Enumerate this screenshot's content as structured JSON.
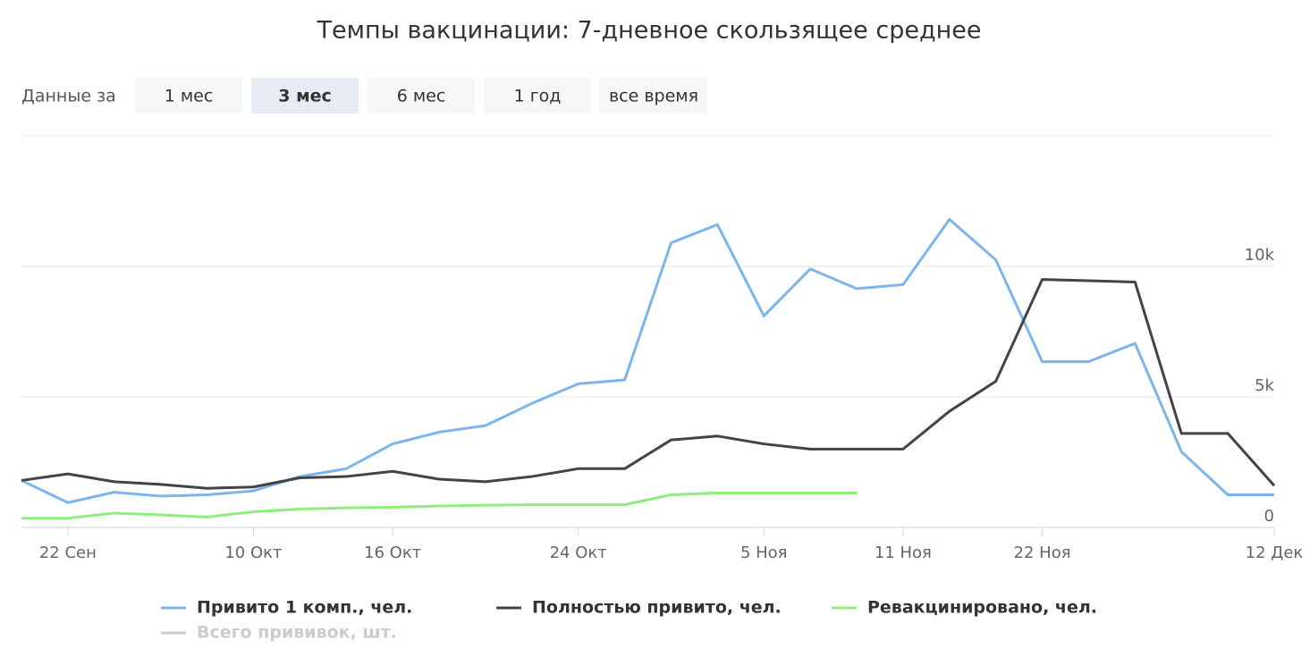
{
  "controls": {
    "label": "Данные за",
    "buttons": [
      "1 мес",
      "3 мес",
      "6 мес",
      "1 год",
      "все время"
    ],
    "selected": 1
  },
  "chart_data": {
    "type": "line",
    "title": "Темпы вакцинации: 7-дневное скользящее среднее",
    "categories": [
      null,
      "22 Сен",
      null,
      null,
      null,
      "10 Окт",
      null,
      null,
      "16 Окт",
      null,
      null,
      null,
      "24 Окт",
      null,
      null,
      null,
      "5 Ноя",
      null,
      null,
      "11 Ноя",
      null,
      null,
      "22 Ноя",
      null,
      null,
      null,
      null,
      "12 Дек"
    ],
    "series": [
      {
        "name": "Привито 1 комп., чел.",
        "color": "#7cb5ec",
        "values": [
          1800,
          950,
          1350,
          1200,
          1250,
          1400,
          1950,
          2250,
          3200,
          3650,
          3900,
          4750,
          5500,
          5650,
          10900,
          11600,
          8100,
          9900,
          9150,
          9300,
          11800,
          10250,
          6350,
          6350,
          7050,
          2900,
          1250,
          1250
        ]
      },
      {
        "name": "Полностью привито, чел.",
        "color": "#434348",
        "values": [
          1800,
          2050,
          1750,
          1650,
          1500,
          1550,
          1900,
          1950,
          2150,
          1850,
          1750,
          1950,
          2250,
          2250,
          3350,
          3500,
          3200,
          3000,
          3000,
          3000,
          4450,
          5600,
          9500,
          9450,
          9400,
          3600,
          3600,
          1600
        ]
      },
      {
        "name": "Ревакцинировано, чел.",
        "color": "#90ed7d",
        "values": [
          350,
          350,
          550,
          480,
          400,
          600,
          700,
          750,
          770,
          820,
          850,
          870,
          870,
          870,
          1250,
          1320,
          1320,
          1320,
          1320,
          null,
          null,
          null,
          null,
          null,
          null,
          null,
          null,
          null
        ]
      },
      {
        "name": "Всего прививок, шт.",
        "color": "#cccccc",
        "hidden": true
      }
    ],
    "ylim": [
      0,
      15000
    ],
    "yticks": [
      0,
      {
        "value": 5000,
        "label": "5k"
      },
      {
        "value": 10000,
        "label": "10k"
      }
    ],
    "grid": true
  }
}
